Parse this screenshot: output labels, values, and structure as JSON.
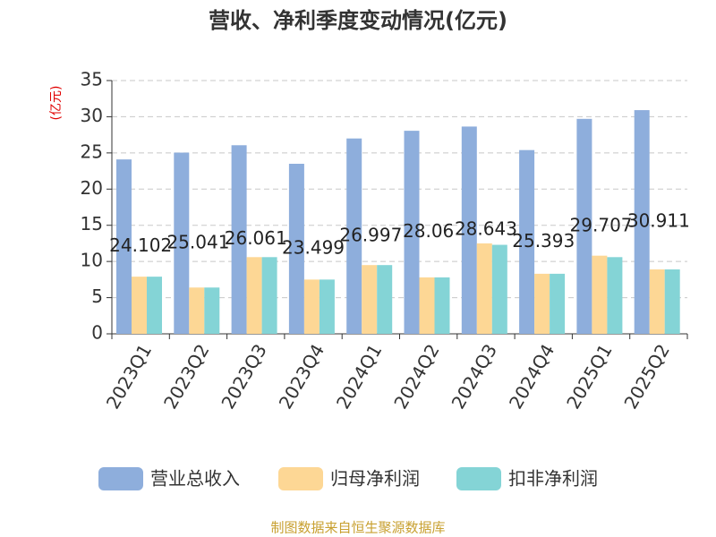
{
  "chart_data": {
    "type": "bar",
    "title": "营收、净利季度变动情况(亿元)",
    "y_label": "(亿元)",
    "categories": [
      "2023Q1",
      "2023Q2",
      "2023Q3",
      "2023Q4",
      "2024Q1",
      "2024Q2",
      "2024Q3",
      "2024Q4",
      "2025Q1",
      "2025Q2"
    ],
    "series": [
      {
        "name": "营业总收入",
        "color": "#8eaedc",
        "values": [
          24.102,
          25.041,
          26.061,
          23.499,
          26.997,
          28.06,
          28.643,
          25.393,
          29.707,
          30.911
        ]
      },
      {
        "name": "归母净利润",
        "color": "#fdd795",
        "values": [
          7.9,
          6.4,
          10.6,
          7.5,
          9.5,
          7.8,
          12.5,
          8.3,
          10.8,
          8.9
        ]
      },
      {
        "name": "扣非净利润",
        "color": "#84d4d6",
        "values": [
          7.9,
          6.4,
          10.6,
          7.5,
          9.5,
          7.8,
          12.3,
          8.3,
          10.6,
          8.9
        ]
      }
    ],
    "ylim": [
      0,
      35
    ],
    "yticks": [
      0,
      5,
      10,
      15,
      20,
      25,
      30,
      35
    ],
    "grid": true,
    "source": "制图数据来自恒生聚源数据库"
  }
}
